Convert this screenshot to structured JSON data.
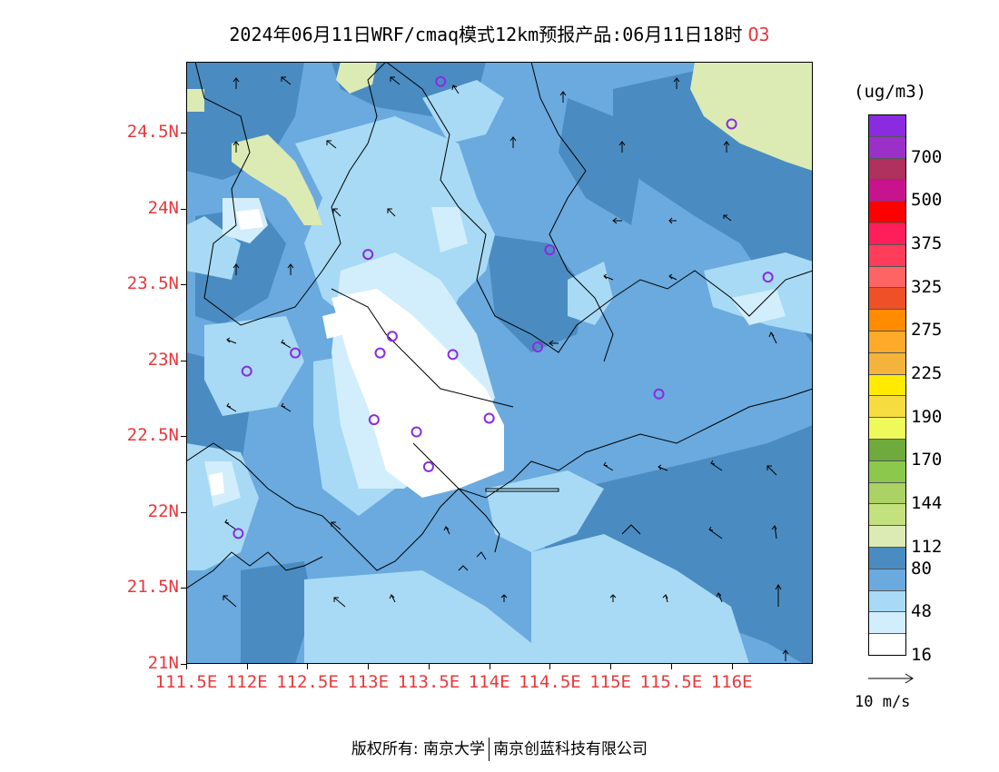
{
  "title": {
    "text": "2024年06月11日WRF/cmaq模式12km预报产品:06月11日18时",
    "species": "O3",
    "species_color": "#e8383b"
  },
  "map": {
    "lat_labels": [
      "24.5N",
      "24N",
      "23.5N",
      "23N",
      "22.5N",
      "22N",
      "21.5N",
      "21N"
    ],
    "lon_labels": [
      "111.5E",
      "112E",
      "112.5E",
      "113E",
      "113.5E",
      "114E",
      "114.5E",
      "115E",
      "115.5E",
      "116E"
    ],
    "station_marker_color": "#8a2be2",
    "stations": [
      {
        "lon": 113.6,
        "lat": 24.84
      },
      {
        "lon": 116.0,
        "lat": 24.56
      },
      {
        "lon": 113.0,
        "lat": 23.7
      },
      {
        "lon": 114.5,
        "lat": 23.73
      },
      {
        "lon": 116.3,
        "lat": 23.55
      },
      {
        "lon": 113.2,
        "lat": 23.16
      },
      {
        "lon": 112.4,
        "lat": 23.05
      },
      {
        "lon": 113.1,
        "lat": 23.05
      },
      {
        "lon": 113.7,
        "lat": 23.04
      },
      {
        "lon": 114.4,
        "lat": 23.09
      },
      {
        "lon": 112.0,
        "lat": 22.93
      },
      {
        "lon": 115.4,
        "lat": 22.78
      },
      {
        "lon": 113.05,
        "lat": 22.61
      },
      {
        "lon": 114.0,
        "lat": 22.62
      },
      {
        "lon": 113.4,
        "lat": 22.53
      },
      {
        "lon": 113.5,
        "lat": 22.3
      },
      {
        "lon": 111.93,
        "lat": 21.86
      }
    ]
  },
  "colorbar": {
    "unit": "(ug/m3)",
    "colors_top_to_bottom": [
      "#8a2be2",
      "#9b30c8",
      "#b0305e",
      "#c8148c",
      "#ff0000",
      "#ff1e5a",
      "#ff3c5a",
      "#ff6464",
      "#ee5028",
      "#ff8c00",
      "#ffaa28",
      "#f4b43c",
      "#ffea00",
      "#f7dc40",
      "#eefa5a",
      "#6eaa3c",
      "#8cc84b",
      "#aad264",
      "#c3e17d",
      "#dceab4",
      "#4a8cc1",
      "#6aaade",
      "#a8daf5",
      "#d2eefc",
      "#ffffff"
    ],
    "labels": [
      {
        "text": "700",
        "index": 1
      },
      {
        "text": "500",
        "index": 3
      },
      {
        "text": "375",
        "index": 5
      },
      {
        "text": "325",
        "index": 7
      },
      {
        "text": "275",
        "index": 9
      },
      {
        "text": "225",
        "index": 11
      },
      {
        "text": "190",
        "index": 13
      },
      {
        "text": "170",
        "index": 15
      },
      {
        "text": "144",
        "index": 17
      },
      {
        "text": "112",
        "index": 19
      },
      {
        "text": "80",
        "index": 20
      },
      {
        "text": "48",
        "index": 22
      },
      {
        "text": "16",
        "index": 24
      }
    ]
  },
  "wind_reference": {
    "label": "10 m/s"
  },
  "copyright": {
    "left": "版权所有: 南京大学",
    "right": "南京创蓝科技有限公司"
  }
}
